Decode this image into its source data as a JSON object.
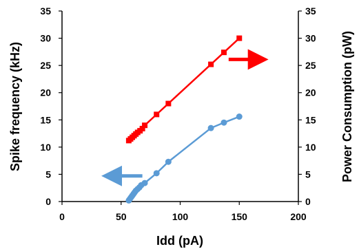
{
  "chart_data": {
    "type": "line",
    "title": "",
    "xlabel": "Idd (pA)",
    "ylabel": "Spike frequency (kHz)",
    "y2label": "Power Consumption (pW)",
    "xlim": [
      0,
      200
    ],
    "ylim": [
      0,
      35
    ],
    "y2lim": [
      0,
      35
    ],
    "x_ticks": [
      0,
      50,
      100,
      150,
      200
    ],
    "y_ticks": [
      0,
      5,
      10,
      15,
      20,
      25,
      30,
      35
    ],
    "y2_ticks": [
      0,
      5,
      10,
      15,
      20,
      25,
      30,
      35
    ],
    "grid": false,
    "series": [
      {
        "axis": "left",
        "marker": "circle",
        "color": "#5b9bd5",
        "x": [
          56.5,
          57.5,
          58.5,
          59.5,
          60.5,
          61.5,
          62.5,
          64,
          65.5,
          67,
          70,
          80,
          90,
          126,
          137,
          150
        ],
        "y": [
          0.2,
          0.5,
          0.8,
          1.1,
          1.4,
          1.7,
          2.0,
          2.3,
          2.6,
          3.0,
          3.4,
          5.2,
          7.3,
          13.5,
          14.5,
          15.6
        ]
      },
      {
        "axis": "right",
        "marker": "square",
        "color": "#ff0000",
        "x": [
          56.5,
          58,
          59.5,
          61,
          62.5,
          64,
          66,
          68,
          70,
          80,
          90,
          126,
          137,
          150
        ],
        "y": [
          11.2,
          11.5,
          11.8,
          12.1,
          12.4,
          12.7,
          13.0,
          13.4,
          14.0,
          16.0,
          18.0,
          25.2,
          27.4,
          30.0
        ]
      }
    ],
    "annotations": [
      {
        "type": "arrow",
        "direction": "left",
        "color": "#5b9bd5",
        "x_from": 68,
        "x_to": 42,
        "y": 4.7
      },
      {
        "type": "arrow",
        "direction": "right",
        "color": "#ff0000",
        "x_from": 141,
        "x_to": 166,
        "y": 26.1
      }
    ]
  }
}
